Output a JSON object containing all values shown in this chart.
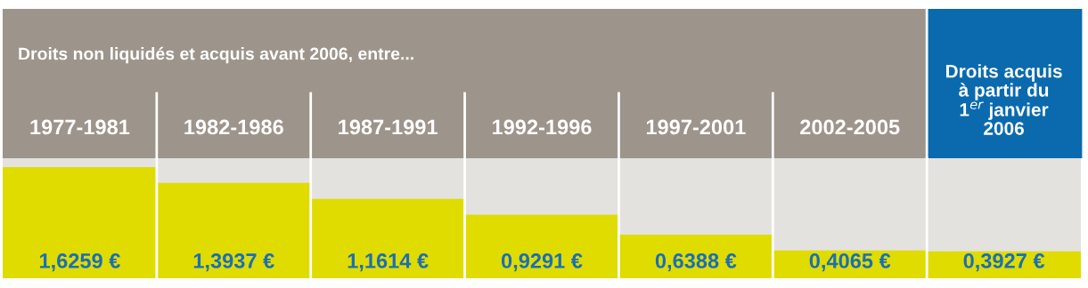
{
  "chart_data": {
    "type": "bar",
    "title": "Droits non liquidés et acquis avant 2006, entre...",
    "categories": [
      "1977-1981",
      "1982-1986",
      "1987-1991",
      "1992-1996",
      "1997-2001",
      "2002-2005",
      "Droits acquis\nà partir du\n1$^{er}$ janvier\n2006"
    ],
    "values": [
      1.6259,
      1.3937,
      1.1614,
      0.9291,
      0.6388,
      0.4065,
      0.3927
    ],
    "value_labels": [
      "1,6259 €",
      "1,3937 €",
      "1,1614 €",
      "0,9291 €",
      "0,6388 €",
      "0,4065 €",
      "0,3927 €"
    ],
    "color": "#e0dc00"
  }
}
